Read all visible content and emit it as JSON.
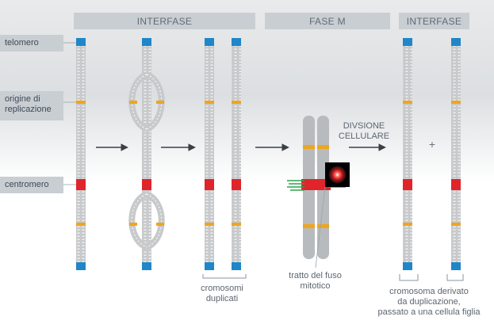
{
  "phases": {
    "interfase_1": "INTERFASE",
    "fase_m": "FASE M",
    "interfase_2": "INTERFASE"
  },
  "labels": {
    "telomero": "telomero",
    "origine_line1": "origine di",
    "origine_line2": "replicazione",
    "centromero": "centromero"
  },
  "captions": {
    "cromosomi_line1": "cromosomi",
    "cromosomi_line2": "duplicati",
    "fuso_line1": "tratto del fuso",
    "fuso_line2": "mitotico",
    "derivato_line1": "cromosoma derivato",
    "derivato_line2": "da duplicazione,",
    "derivato_line3": "passato a una cellula figlia",
    "divisione_line1": "DIVSIONE",
    "divisione_line2": "CELLULARE",
    "plus": "+"
  },
  "colors": {
    "telomere": "#1f86c8",
    "origin": "#f0a51c",
    "centromere": "#e0242a",
    "chromatid": "#c7c9cb",
    "spindle": "#2fa24a",
    "arrow": "#3a3f44"
  }
}
